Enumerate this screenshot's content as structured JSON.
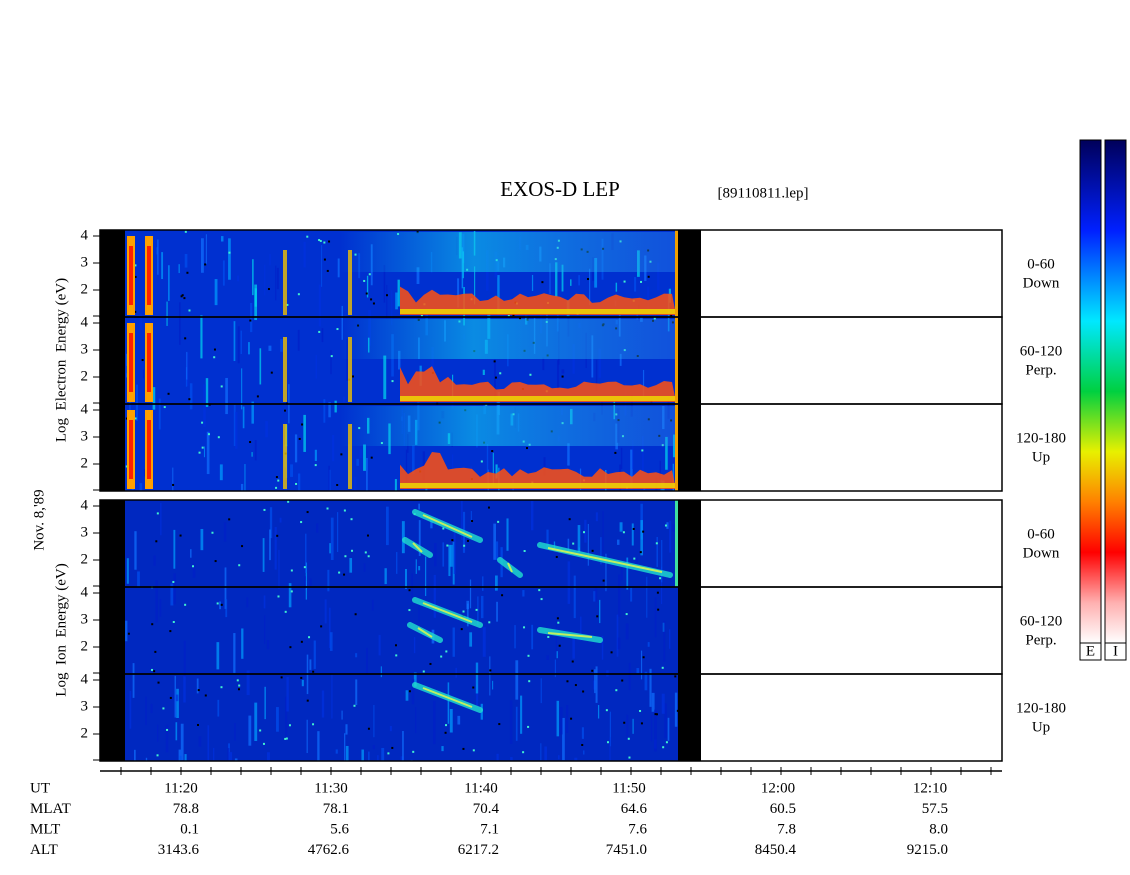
{
  "header": {
    "title": "EXOS-D LEP",
    "file": "[89110811.lep]"
  },
  "date": "Nov. 8,'89",
  "groups": [
    {
      "label": "Log  Electron  Energy (eV)",
      "panels": [
        {
          "angle": "0-60",
          "direction": "Down"
        },
        {
          "angle": "60-120",
          "direction": "Perp."
        },
        {
          "angle": "120-180",
          "direction": "Up"
        }
      ]
    },
    {
      "label": "Log  Ion  Energy (eV)",
      "panels": [
        {
          "angle": "0-60",
          "direction": "Down"
        },
        {
          "angle": "60-120",
          "direction": "Perp."
        },
        {
          "angle": "120-180",
          "direction": "Up"
        }
      ]
    }
  ],
  "energy_ticks": [
    4,
    3,
    2
  ],
  "colorbars": [
    "E",
    "I"
  ],
  "orbit_table": {
    "rows": [
      {
        "label": "UT",
        "values": [
          "11:20",
          "11:30",
          "11:40",
          "11:50",
          "12:00",
          "12:10"
        ]
      },
      {
        "label": "MLAT",
        "values": [
          "78.8",
          "78.1",
          "70.4",
          "64.6",
          "60.5",
          "57.5"
        ]
      },
      {
        "label": "MLT",
        "values": [
          "0.1",
          "5.6",
          "7.1",
          "7.6",
          "7.8",
          "8.0"
        ]
      },
      {
        "label": "ALT",
        "values": [
          "3143.6",
          "4762.6",
          "6217.2",
          "7451.0",
          "8450.4",
          "9215.0"
        ]
      }
    ]
  }
}
